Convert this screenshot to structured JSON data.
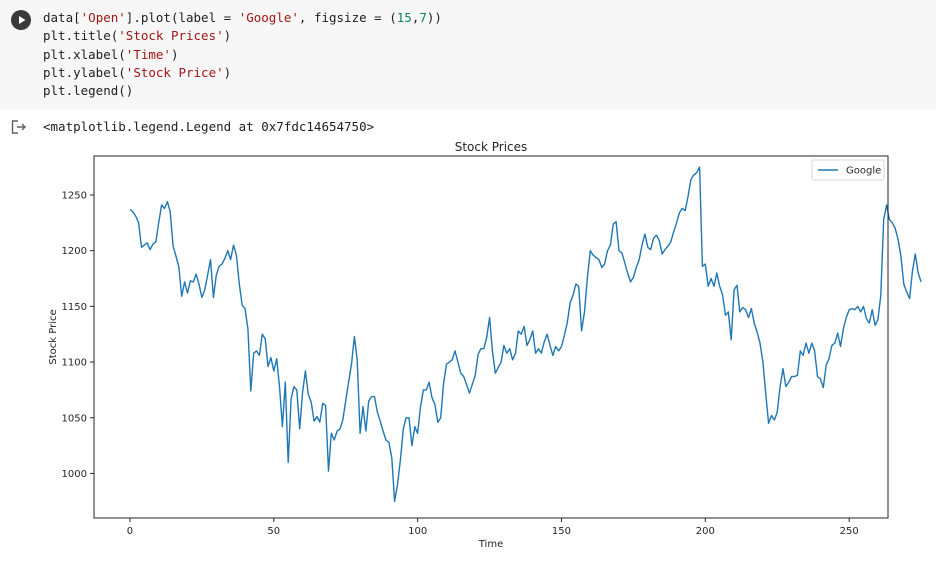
{
  "code_cell": {
    "lines": [
      {
        "parts": [
          {
            "t": "data[",
            "c": ""
          },
          {
            "t": "'Open'",
            "c": "str"
          },
          {
            "t": "].plot(label = ",
            "c": ""
          },
          {
            "t": "'Google'",
            "c": "str"
          },
          {
            "t": ", figsize = (",
            "c": ""
          },
          {
            "t": "15",
            "c": "num"
          },
          {
            "t": ",",
            "c": ""
          },
          {
            "t": "7",
            "c": "num"
          },
          {
            "t": "))",
            "c": ""
          }
        ]
      },
      {
        "parts": [
          {
            "t": "plt.title(",
            "c": ""
          },
          {
            "t": "'Stock Prices'",
            "c": "str"
          },
          {
            "t": ")",
            "c": ""
          }
        ]
      },
      {
        "parts": [
          {
            "t": "plt.xlabel(",
            "c": ""
          },
          {
            "t": "'Time'",
            "c": "str"
          },
          {
            "t": ")",
            "c": ""
          }
        ]
      },
      {
        "parts": [
          {
            "t": "plt.ylabel(",
            "c": ""
          },
          {
            "t": "'Stock Price'",
            "c": "str"
          },
          {
            "t": ")",
            "c": ""
          }
        ]
      },
      {
        "parts": [
          {
            "t": "plt.legend()",
            "c": ""
          }
        ]
      }
    ],
    "run_icon": "play-icon"
  },
  "output": {
    "icon": "output-arrow-icon",
    "text": "<matplotlib.legend.Legend at 0x7fdc14654750>"
  },
  "colors": {
    "line": "#1f77b4",
    "cell_bg": "#f7f7f7",
    "axis": "#262626"
  },
  "chart_data": {
    "type": "line",
    "title": "Stock Prices",
    "xlabel": "Time",
    "ylabel": "Stock Price",
    "xlim": [
      -12.5,
      263.5
    ],
    "ylim": [
      960,
      1285
    ],
    "xticks": [
      0,
      50,
      100,
      150,
      200,
      250
    ],
    "yticks": [
      1000,
      1050,
      1100,
      1150,
      1200,
      1250
    ],
    "legend": {
      "position": "upper right",
      "entries": [
        "Google"
      ]
    },
    "grid": false,
    "series": [
      {
        "name": "Google",
        "x_start": 0,
        "values": [
          1237,
          1235,
          1231,
          1225,
          1203,
          1205,
          1207,
          1201,
          1206,
          1208,
          1225,
          1241,
          1238,
          1244,
          1235,
          1204,
          1195,
          1185,
          1159,
          1172,
          1162,
          1173,
          1172,
          1179,
          1170,
          1158,
          1165,
          1178,
          1192,
          1158,
          1178,
          1186,
          1188,
          1193,
          1200,
          1192,
          1205,
          1196,
          1170,
          1151,
          1148,
          1130,
          1074,
          1108,
          1110,
          1106,
          1125,
          1121,
          1096,
          1104,
          1092,
          1103,
          1077,
          1042,
          1082,
          1010,
          1067,
          1078,
          1075,
          1040,
          1073,
          1092,
          1071,
          1064,
          1047,
          1051,
          1046,
          1063,
          1061,
          1002,
          1036,
          1030,
          1038,
          1040,
          1048,
          1065,
          1082,
          1098,
          1123,
          1102,
          1036,
          1060,
          1038,
          1065,
          1069,
          1069,
          1055,
          1047,
          1038,
          1030,
          1028,
          1014,
          975,
          990,
          1012,
          1040,
          1050,
          1050,
          1025,
          1042,
          1036,
          1060,
          1075,
          1075,
          1082,
          1068,
          1062,
          1046,
          1050,
          1080,
          1098,
          1100,
          1102,
          1110,
          1100,
          1090,
          1087,
          1080,
          1072,
          1080,
          1088,
          1107,
          1112,
          1112,
          1122,
          1140,
          1110,
          1090,
          1095,
          1100,
          1115,
          1108,
          1112,
          1102,
          1108,
          1128,
          1125,
          1132,
          1115,
          1120,
          1128,
          1108,
          1112,
          1108,
          1118,
          1125,
          1115,
          1106,
          1114,
          1110,
          1114,
          1124,
          1135,
          1153,
          1160,
          1170,
          1168,
          1128,
          1145,
          1176,
          1200,
          1196,
          1194,
          1192,
          1185,
          1188,
          1200,
          1205,
          1224,
          1226,
          1200,
          1198,
          1189,
          1180,
          1172,
          1176,
          1185,
          1192,
          1205,
          1215,
          1203,
          1201,
          1211,
          1214,
          1209,
          1197,
          1201,
          1204,
          1208,
          1217,
          1225,
          1234,
          1238,
          1236,
          1249,
          1264,
          1268,
          1270,
          1275,
          1186,
          1188,
          1168,
          1175,
          1168,
          1180,
          1168,
          1160,
          1142,
          1145,
          1120,
          1165,
          1169,
          1145,
          1149,
          1147,
          1140,
          1148,
          1135,
          1127,
          1117,
          1100,
          1072,
          1045,
          1052,
          1048,
          1055,
          1078,
          1094,
          1078,
          1082,
          1087,
          1087,
          1088,
          1110,
          1106,
          1117,
          1108,
          1117,
          1110,
          1087,
          1085,
          1077,
          1097,
          1103,
          1115,
          1117,
          1126,
          1114,
          1130,
          1140,
          1147,
          1148,
          1147,
          1150,
          1145,
          1150,
          1139,
          1135,
          1147,
          1133,
          1138,
          1160,
          1228,
          1241,
          1228,
          1225,
          1220,
          1210,
          1195,
          1170,
          1163,
          1157,
          1182,
          1197,
          1180,
          1172
        ]
      }
    ]
  }
}
